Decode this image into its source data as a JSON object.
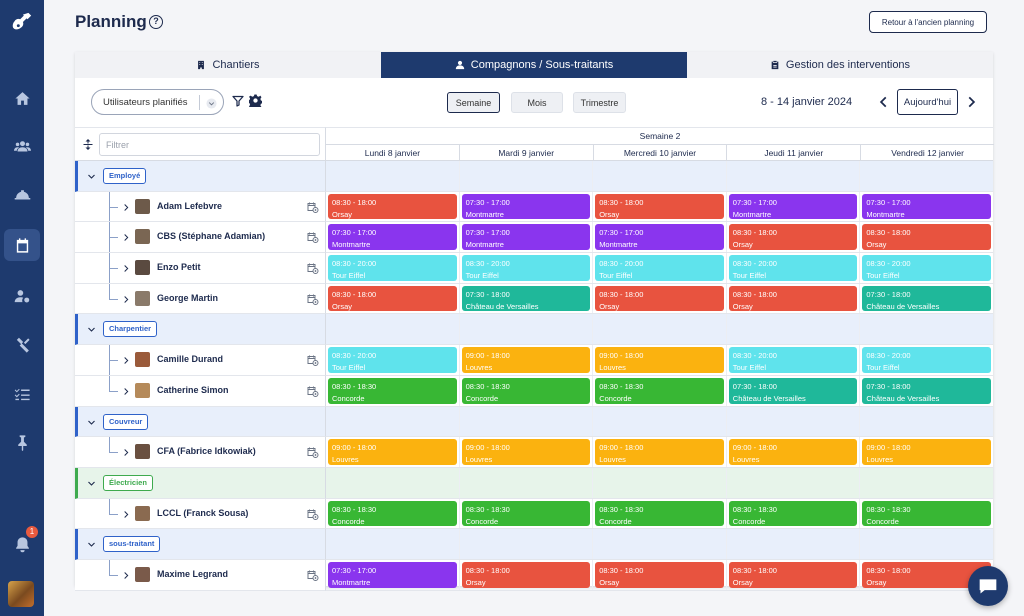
{
  "page": {
    "title": "Planning",
    "help_icon": "question-circle-icon",
    "old_planning_label": "Retour à l'ancien planning"
  },
  "sidebar": {
    "logo_icon": "guitar-logo-icon",
    "items": [
      {
        "name": "home-icon",
        "active": false
      },
      {
        "name": "users-group-icon",
        "active": false
      },
      {
        "name": "helmet-icon",
        "active": false
      },
      {
        "name": "calendar-icon",
        "active": true
      },
      {
        "name": "user-settings-icon",
        "active": false
      },
      {
        "name": "tools-icon",
        "active": false
      },
      {
        "name": "checklist-icon",
        "active": false
      },
      {
        "name": "pin-icon",
        "active": false
      }
    ],
    "notification_count": "1"
  },
  "tabs": [
    {
      "label": "Chantiers",
      "icon": "building-icon",
      "active": false
    },
    {
      "label": "Compagnons / Sous-traitants",
      "icon": "person-icon",
      "active": true
    },
    {
      "label": "Gestion des interventions",
      "icon": "clipboard-icon",
      "active": false
    }
  ],
  "toolbar": {
    "users_select": "Utilisateurs planifiés",
    "views": [
      "Semaine",
      "Mois",
      "Trimestre"
    ],
    "active_view": "Semaine",
    "date_range": "8 - 14 janvier 2024",
    "today_label": "Aujourd'hui"
  },
  "grid": {
    "filter_placeholder": "Filtrer",
    "week_label": "Semaine 2",
    "days": [
      "Lundi 8 janvier",
      "Mardi 9 janvier",
      "Mercredi 10 janvier",
      "Jeudi 11 janvier",
      "Vendredi 12 janvier"
    ]
  },
  "colors": {
    "orsay": "#e8533f",
    "montmartre": "#8a35ee",
    "tour_eiffel": "#5fe3ec",
    "versailles": "#1fb89a",
    "louvres": "#fbb20f",
    "concorde": "#38b734"
  },
  "groups": [
    {
      "label": "Employé",
      "color": "blue",
      "people": [
        {
          "name": "Adam Lefebvre",
          "events": [
            {
              "time": "08:30 - 18:00",
              "place": "Orsay",
              "color": "#e8533f"
            },
            {
              "time": "07:30 - 17:00",
              "place": "Montmartre",
              "color": "#8a35ee"
            },
            {
              "time": "08:30 - 18:00",
              "place": "Orsay",
              "color": "#e8533f"
            },
            {
              "time": "07:30 - 17:00",
              "place": "Montmartre",
              "color": "#8a35ee"
            },
            {
              "time": "07:30 - 17:00",
              "place": "Montmartre",
              "color": "#8a35ee"
            }
          ]
        },
        {
          "name": "CBS (Stéphane Adamian)",
          "events": [
            {
              "time": "07:30 - 17:00",
              "place": "Montmartre",
              "color": "#8a35ee"
            },
            {
              "time": "07:30 - 17:00",
              "place": "Montmartre",
              "color": "#8a35ee"
            },
            {
              "time": "07:30 - 17:00",
              "place": "Montmartre",
              "color": "#8a35ee"
            },
            {
              "time": "08:30 - 18:00",
              "place": "Orsay",
              "color": "#e8533f"
            },
            {
              "time": "08:30 - 18:00",
              "place": "Orsay",
              "color": "#e8533f"
            }
          ]
        },
        {
          "name": "Enzo Petit",
          "events": [
            {
              "time": "08:30 - 20:00",
              "place": "Tour Eiffel",
              "color": "#5fe3ec"
            },
            {
              "time": "08:30 - 20:00",
              "place": "Tour Eiffel",
              "color": "#5fe3ec"
            },
            {
              "time": "08:30 - 20:00",
              "place": "Tour Eiffel",
              "color": "#5fe3ec"
            },
            {
              "time": "08:30 - 20:00",
              "place": "Tour Eiffel",
              "color": "#5fe3ec"
            },
            {
              "time": "08:30 - 20:00",
              "place": "Tour Eiffel",
              "color": "#5fe3ec"
            }
          ]
        },
        {
          "name": "George Martin",
          "events": [
            {
              "time": "08:30 - 18:00",
              "place": "Orsay",
              "color": "#e8533f"
            },
            {
              "time": "07:30 - 18:00",
              "place": "Château de Versailles",
              "color": "#1fb89a"
            },
            {
              "time": "08:30 - 18:00",
              "place": "Orsay",
              "color": "#e8533f"
            },
            {
              "time": "08:30 - 18:00",
              "place": "Orsay",
              "color": "#e8533f"
            },
            {
              "time": "07:30 - 18:00",
              "place": "Château de Versailles",
              "color": "#1fb89a"
            }
          ]
        }
      ]
    },
    {
      "label": "Charpentier",
      "color": "blue",
      "people": [
        {
          "name": "Camille Durand",
          "events": [
            {
              "time": "08:30 - 20:00",
              "place": "Tour Eiffel",
              "color": "#5fe3ec"
            },
            {
              "time": "09:00 - 18:00",
              "place": "Louvres",
              "color": "#fbb20f"
            },
            {
              "time": "09:00 - 18:00",
              "place": "Louvres",
              "color": "#fbb20f"
            },
            {
              "time": "08:30 - 20:00",
              "place": "Tour Eiffel",
              "color": "#5fe3ec"
            },
            {
              "time": "08:30 - 20:00",
              "place": "Tour Eiffel",
              "color": "#5fe3ec"
            }
          ]
        },
        {
          "name": "Catherine Simon",
          "events": [
            {
              "time": "08:30 - 18:30",
              "place": "Concorde",
              "color": "#38b734"
            },
            {
              "time": "08:30 - 18:30",
              "place": "Concorde",
              "color": "#38b734"
            },
            {
              "time": "08:30 - 18:30",
              "place": "Concorde",
              "color": "#38b734"
            },
            {
              "time": "07:30 - 18:00",
              "place": "Château de Versailles",
              "color": "#1fb89a"
            },
            {
              "time": "07:30 - 18:00",
              "place": "Château de Versailles",
              "color": "#1fb89a"
            }
          ]
        }
      ]
    },
    {
      "label": "Couvreur",
      "color": "blue",
      "people": [
        {
          "name": "CFA (Fabrice Idkowiak)",
          "events": [
            {
              "time": "09:00 - 18:00",
              "place": "Louvres",
              "color": "#fbb20f"
            },
            {
              "time": "09:00 - 18:00",
              "place": "Louvres",
              "color": "#fbb20f"
            },
            {
              "time": "09:00 - 18:00",
              "place": "Louvres",
              "color": "#fbb20f"
            },
            {
              "time": "09:00 - 18:00",
              "place": "Louvres",
              "color": "#fbb20f"
            },
            {
              "time": "09:00 - 18:00",
              "place": "Louvres",
              "color": "#fbb20f"
            }
          ]
        }
      ]
    },
    {
      "label": "Électricien",
      "color": "green",
      "people": [
        {
          "name": "LCCL (Franck Sousa)",
          "events": [
            {
              "time": "08:30 - 18:30",
              "place": "Concorde",
              "color": "#38b734"
            },
            {
              "time": "08:30 - 18:30",
              "place": "Concorde",
              "color": "#38b734"
            },
            {
              "time": "08:30 - 18:30",
              "place": "Concorde",
              "color": "#38b734"
            },
            {
              "time": "08:30 - 18:30",
              "place": "Concorde",
              "color": "#38b734"
            },
            {
              "time": "08:30 - 18:30",
              "place": "Concorde",
              "color": "#38b734"
            }
          ]
        }
      ]
    },
    {
      "label": "sous-traitant",
      "color": "blue",
      "people": [
        {
          "name": "Maxime Legrand",
          "events": [
            {
              "time": "07:30 - 17:00",
              "place": "Montmartre",
              "color": "#8a35ee"
            },
            {
              "time": "08:30 - 18:00",
              "place": "Orsay",
              "color": "#e8533f"
            },
            {
              "time": "08:30 - 18:00",
              "place": "Orsay",
              "color": "#e8533f"
            },
            {
              "time": "08:30 - 18:00",
              "place": "Orsay",
              "color": "#e8533f"
            },
            {
              "time": "08:30 - 18:00",
              "place": "Orsay",
              "color": "#e8533f"
            }
          ]
        }
      ]
    }
  ],
  "chat_icon": "chat-bubble-icon"
}
